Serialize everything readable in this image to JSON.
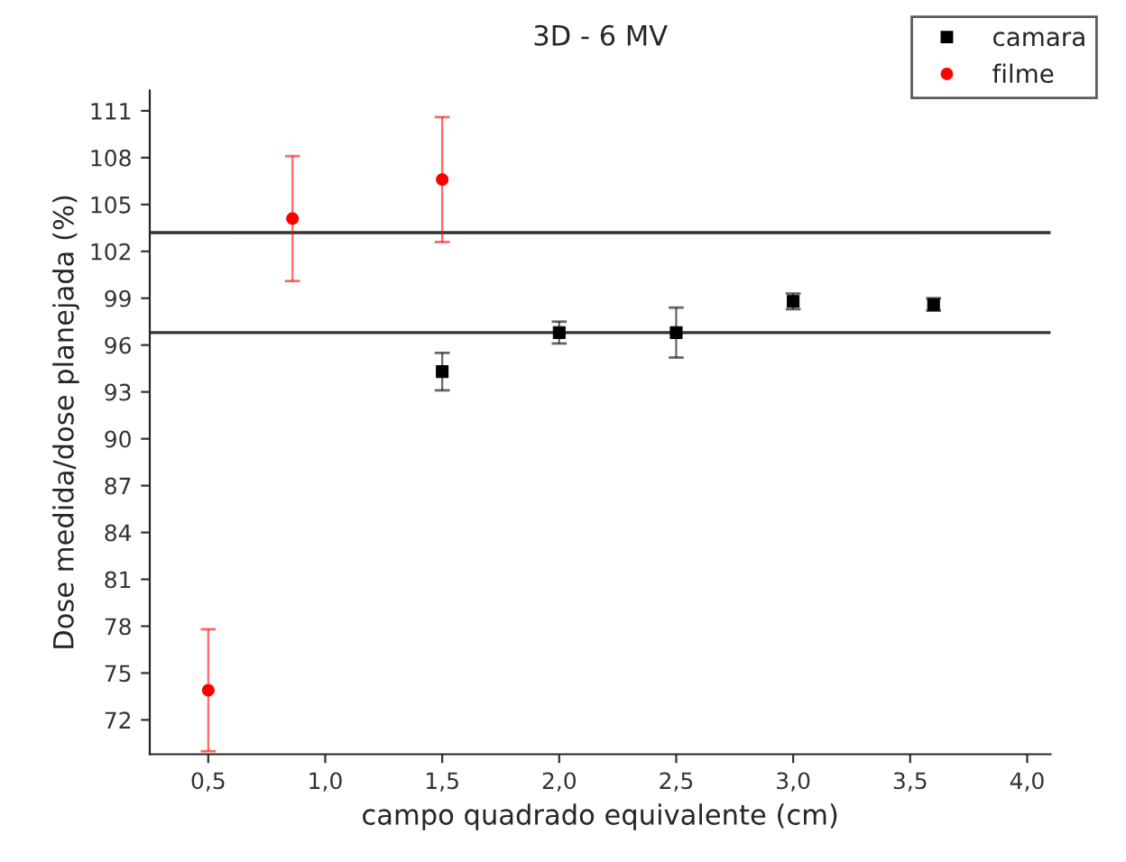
{
  "chart_data": {
    "type": "scatter",
    "title": "3D - 6 MV",
    "xlabel": "campo quadrado equivalente (cm)",
    "ylabel": "Dose medida/dose planejada (%)",
    "series": [
      {
        "name": "camara",
        "color": "#000000",
        "marker": "square",
        "x": [
          1.5,
          2.0,
          2.5,
          3.0,
          3.6
        ],
        "values": [
          94.3,
          96.8,
          96.8,
          98.8,
          98.6
        ],
        "errors": [
          1.2,
          0.7,
          1.6,
          0.5,
          0.4
        ]
      },
      {
        "name": "filme",
        "color": "#ff0000",
        "marker": "circle",
        "x": [
          0.5,
          0.86,
          1.5
        ],
        "values": [
          73.9,
          104.1,
          106.6
        ],
        "errors": [
          3.9,
          4.0,
          4.0
        ]
      }
    ],
    "ref_lines": [
      {
        "axis": "y",
        "value": 103.2,
        "label": null,
        "color": "#333333"
      },
      {
        "axis": "y",
        "value": 96.8,
        "label": null,
        "color": "#333333"
      }
    ],
    "xlim": [
      0.25,
      4.1
    ],
    "ylim": [
      69.8,
      112.3
    ],
    "xticks": [
      {
        "value": 0.5,
        "label": "0,5"
      },
      {
        "value": 1.0,
        "label": "1,0"
      },
      {
        "value": 1.5,
        "label": "1,5"
      },
      {
        "value": 2.0,
        "label": "2,0"
      },
      {
        "value": 2.5,
        "label": "2,5"
      },
      {
        "value": 3.0,
        "label": "3,0"
      },
      {
        "value": 3.5,
        "label": "3,5"
      },
      {
        "value": 4.0,
        "label": "4,0"
      }
    ],
    "yticks": [
      72,
      75,
      78,
      81,
      84,
      87,
      90,
      93,
      96,
      99,
      102,
      105,
      108,
      111
    ],
    "grid": false,
    "legend": "top right"
  }
}
